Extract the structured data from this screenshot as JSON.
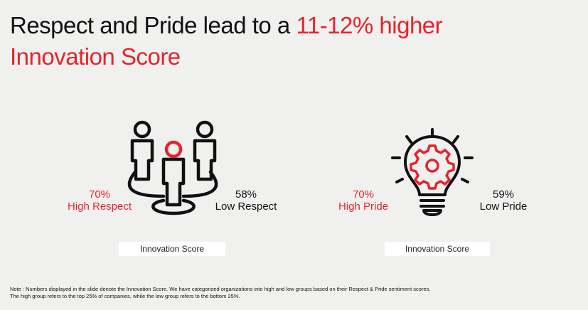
{
  "title": {
    "line1_text": "Respect and Pride lead to a ",
    "line1_highlight": "11-12% higher",
    "line2_highlight": "Innovation Score"
  },
  "respect": {
    "high_value": "70%",
    "high_label": "High Respect",
    "low_value": "58%",
    "low_label": "Low Respect",
    "caption": "Innovation Score",
    "icon": "people-network-icon"
  },
  "pride": {
    "high_value": "70%",
    "high_label": "High Pride",
    "low_value": "59%",
    "low_label": "Low Pride",
    "caption": "Innovation Score",
    "icon": "lightbulb-gear-icon"
  },
  "note": {
    "line1": "Note : Numbers displayed in the slide denote the Innovation Score. We have categorized organizations into high and low groups based on their Respect & Pride sentiment scores.",
    "line2": "The high group refers to the top 25% of companies, while the low group refers to the bottom 25%."
  },
  "colors": {
    "accent": "#e8222b",
    "background": "#f0f1ef",
    "text": "#111111"
  }
}
